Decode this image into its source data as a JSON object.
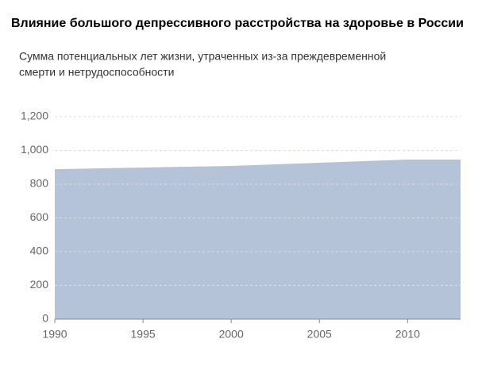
{
  "chart_data": {
    "type": "area",
    "title": "Влияние большого депрессивного расстройства на здоровье в России",
    "subtitle": [
      "Сумма потенциальных лет жизни, утраченных из-за преждевременной",
      "смерти и нетрудоспособности"
    ],
    "x": [
      1990,
      1995,
      2000,
      2005,
      2010,
      2013
    ],
    "values": [
      889,
      899,
      908,
      927,
      946,
      946
    ],
    "color": "#b4c3d8",
    "xlim": [
      1990,
      2013
    ],
    "xticks": [
      1990,
      1995,
      2000,
      2005,
      2010
    ],
    "ylim": [
      0,
      1200
    ],
    "yticks": [
      0,
      200,
      400,
      600,
      800,
      {
        "value": 1000,
        "label": "1,000"
      },
      {
        "value": 1200,
        "label": "1,200"
      }
    ],
    "grid": true
  }
}
